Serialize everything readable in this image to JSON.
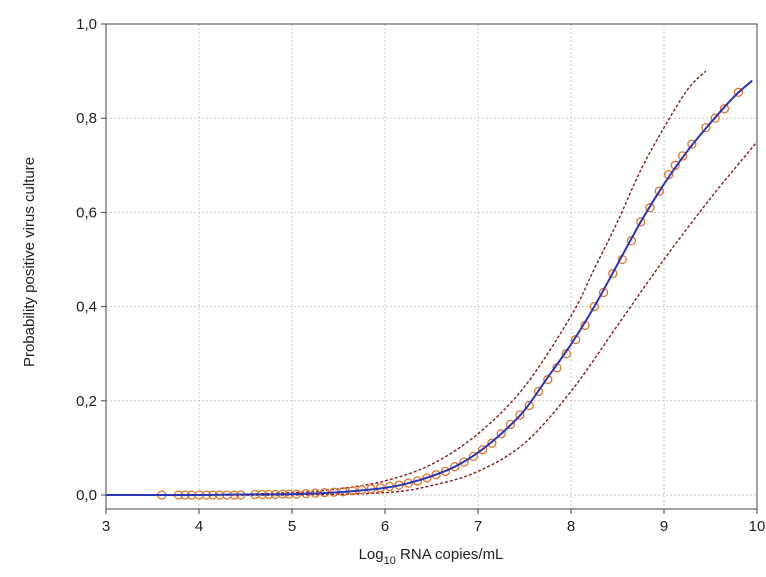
{
  "chart_data": {
    "type": "scatter",
    "xlabel_main": "Log",
    "xlabel_sub": "10",
    "xlabel_rest": " RNA copies/mL",
    "ylabel": "Probability positive virus culture",
    "xlim": [
      3,
      10
    ],
    "ylim": [
      0,
      1
    ],
    "x_ticks": [
      3,
      4,
      5,
      6,
      7,
      8,
      9,
      10
    ],
    "x_tick_labels": [
      "3",
      "4",
      "5",
      "6",
      "7",
      "8",
      "9",
      "10"
    ],
    "y_ticks": [
      0,
      0.2,
      0.4,
      0.6,
      0.8,
      1.0
    ],
    "y_tick_labels": [
      "0,0",
      "0,2",
      "0,4",
      "0,6",
      "0,8",
      "1,0"
    ],
    "grid": true,
    "series": [
      {
        "kind": "fitted-line",
        "color": "#2b35b8",
        "x": [
          3.0,
          3.5,
          4.0,
          4.5,
          5.0,
          5.5,
          6.0,
          6.25,
          6.5,
          6.75,
          7.0,
          7.25,
          7.5,
          7.75,
          8.0,
          8.25,
          8.5,
          8.75,
          9.0,
          9.25,
          9.5,
          9.75,
          9.95
        ],
        "y": [
          0.0,
          0.0,
          0.0,
          0.001,
          0.002,
          0.006,
          0.015,
          0.025,
          0.04,
          0.06,
          0.09,
          0.13,
          0.18,
          0.25,
          0.32,
          0.4,
          0.49,
          0.58,
          0.66,
          0.73,
          0.79,
          0.845,
          0.88
        ]
      },
      {
        "kind": "upper-confidence-band",
        "color": "#8b1a1a",
        "x": [
          3.0,
          4.0,
          5.0,
          5.5,
          6.0,
          6.5,
          7.0,
          7.5,
          8.0,
          8.25,
          8.5,
          8.75,
          9.0,
          9.25,
          9.45
        ],
        "y": [
          0.0,
          0.0,
          0.005,
          0.013,
          0.03,
          0.065,
          0.13,
          0.23,
          0.38,
          0.48,
          0.58,
          0.69,
          0.78,
          0.86,
          0.9
        ]
      },
      {
        "kind": "lower-confidence-band",
        "color": "#8b1a1a",
        "x": [
          3.0,
          4.0,
          5.0,
          6.0,
          6.5,
          7.0,
          7.5,
          8.0,
          8.5,
          9.0,
          9.5,
          10.0
        ],
        "y": [
          0.0,
          0.0,
          0.0,
          0.005,
          0.02,
          0.05,
          0.11,
          0.22,
          0.36,
          0.5,
          0.63,
          0.75
        ]
      },
      {
        "kind": "observed-points",
        "color": "#e0762a",
        "x": [
          3.6,
          3.78,
          3.85,
          3.92,
          4.0,
          4.08,
          4.15,
          4.22,
          4.3,
          4.38,
          4.45,
          4.6,
          4.68,
          4.75,
          4.82,
          4.9,
          4.97,
          5.05,
          5.15,
          5.25,
          5.35,
          5.45,
          5.55,
          5.65,
          5.75,
          5.85,
          5.95,
          6.05,
          6.15,
          6.25,
          6.35,
          6.45,
          6.55,
          6.65,
          6.75,
          6.85,
          6.95,
          7.05,
          7.15,
          7.25,
          7.35,
          7.45,
          7.55,
          7.65,
          7.75,
          7.85,
          7.95,
          8.05,
          8.15,
          8.25,
          8.35,
          8.45,
          8.55,
          8.65,
          8.75,
          8.85,
          8.95,
          9.05,
          9.12,
          9.2,
          9.3,
          9.45,
          9.55,
          9.65,
          9.8
        ],
        "y": [
          0.0,
          0.0,
          0.0,
          0.0,
          0.0,
          0.0,
          0.0,
          0.0,
          0.0,
          0.0,
          0.0,
          0.001,
          0.001,
          0.001,
          0.001,
          0.002,
          0.002,
          0.002,
          0.003,
          0.004,
          0.005,
          0.006,
          0.007,
          0.009,
          0.011,
          0.013,
          0.015,
          0.018,
          0.021,
          0.025,
          0.03,
          0.036,
          0.043,
          0.05,
          0.06,
          0.07,
          0.082,
          0.096,
          0.11,
          0.13,
          0.15,
          0.17,
          0.19,
          0.22,
          0.245,
          0.27,
          0.3,
          0.33,
          0.36,
          0.4,
          0.43,
          0.47,
          0.5,
          0.54,
          0.58,
          0.61,
          0.645,
          0.68,
          0.7,
          0.72,
          0.745,
          0.78,
          0.8,
          0.82,
          0.855
        ]
      }
    ]
  }
}
